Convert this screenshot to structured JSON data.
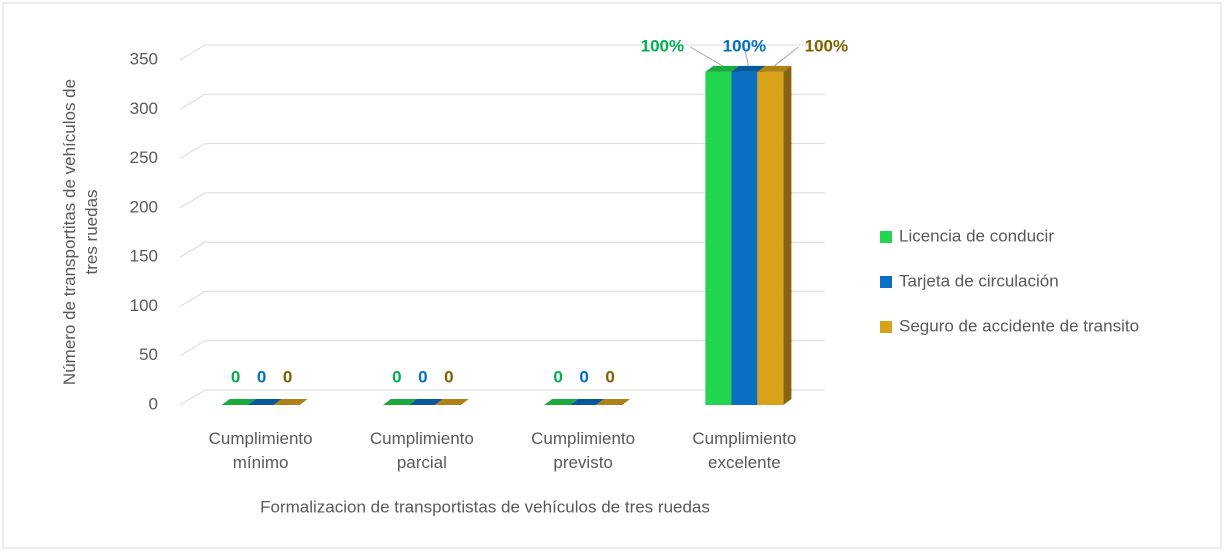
{
  "chart_data": {
    "type": "bar3d",
    "x_label": "Formalizacion de transportistas de vehículos de tres ruedas",
    "y_label": "Número de transportitas de vehículos de tres ruedas",
    "categories": [
      "Cumplimiento mínimo",
      "Cumplimiento parcial",
      "Cumplimiento previsto",
      "Cumplimiento excelente"
    ],
    "series": [
      {
        "name": "Licencia de conducir",
        "color": "#22d44e",
        "label_color": "#00b050",
        "values": [
          0,
          0,
          0,
          338
        ],
        "percent": [
          0,
          0,
          0,
          100
        ],
        "percent_labels": [
          "0",
          "0",
          "0",
          "100%"
        ]
      },
      {
        "name": "Tarjeta de circulación",
        "color": "#0a6fc0",
        "label_color": "#0070c0",
        "values": [
          0,
          0,
          0,
          338
        ],
        "percent": [
          0,
          0,
          0,
          100
        ],
        "percent_labels": [
          "0",
          "0",
          "0",
          "100%"
        ]
      },
      {
        "name": "Seguro de accidente de transito",
        "color": "#d9a21b",
        "label_color": "#7f6000",
        "values": [
          0,
          0,
          0,
          338
        ],
        "percent": [
          0,
          0,
          0,
          100
        ],
        "percent_labels": [
          "0",
          "0",
          "0",
          "100%"
        ]
      }
    ],
    "ylim": [
      0,
      350
    ],
    "yticks": [
      0,
      50,
      100,
      150,
      200,
      250,
      300,
      350
    ],
    "grid": true,
    "legend": "right"
  }
}
